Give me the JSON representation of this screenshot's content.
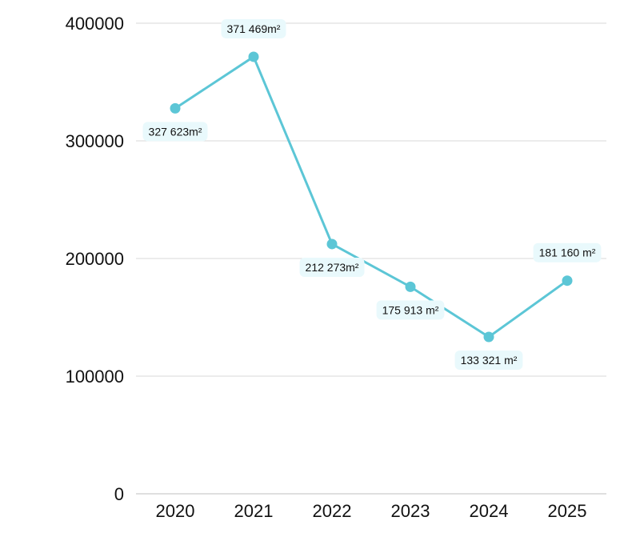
{
  "chart_data": {
    "type": "line",
    "title": "",
    "xlabel": "",
    "ylabel": "",
    "categories": [
      "2020",
      "2021",
      "2022",
      "2023",
      "2024",
      "2025"
    ],
    "series": [
      {
        "values": [
          327623,
          371469,
          212273,
          175913,
          133321,
          181160
        ]
      }
    ],
    "data_labels": [
      "327 623m²",
      "371 469m²",
      "212 273m²",
      "175 913 m²",
      "133 321 m²",
      "181 160 m²"
    ],
    "label_side": [
      "below-left",
      "above",
      "below-left",
      "below",
      "below",
      "above"
    ],
    "ylim": [
      0,
      400000
    ],
    "y_ticks": [
      "0",
      "100000",
      "200000",
      "300000",
      "400000"
    ],
    "grid": true,
    "legend": "none"
  },
  "colors": {
    "series": "#5cc6d6",
    "label_background": "#e9f9fc"
  }
}
